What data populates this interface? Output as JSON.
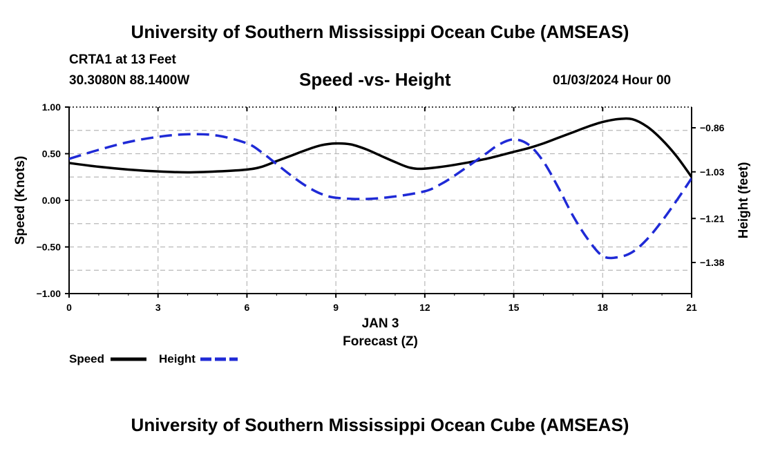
{
  "page": {
    "top_title": "University of Southern Mississippi Ocean Cube (AMSEAS)",
    "bottom_title": "University of Southern Mississippi Ocean Cube (AMSEAS)",
    "station": "CRTA1 at 13 Feet",
    "location": "30.3080N  88.1400W",
    "datetime": "01/03/2024 Hour 00"
  },
  "chart_data": {
    "type": "line",
    "title": "Speed -vs- Height",
    "xlabel_date": "JAN 3",
    "xlabel": "Forecast (Z)",
    "ylabel": "Speed (Knots)",
    "y2label": "Height (feet)",
    "xlim": [
      0,
      21
    ],
    "ylim": [
      -1.0,
      1.0
    ],
    "y2lim": [
      -1.5,
      -0.78
    ],
    "xticks": [
      0,
      3,
      6,
      9,
      12,
      15,
      18,
      21
    ],
    "xtick_labels": [
      "0",
      "3",
      "6",
      "9",
      "12",
      "15",
      "18",
      "21"
    ],
    "yticks": [
      1.0,
      0.5,
      0.0,
      -0.5,
      -1.0
    ],
    "ytick_labels": [
      "1.00",
      "0.50",
      "0.00",
      "−0.50",
      "−1.00"
    ],
    "y2ticks": [
      -0.86,
      -1.03,
      -1.21,
      -1.38
    ],
    "y2tick_labels": [
      "−0.86",
      "−1.03",
      "−1.21",
      "−1.38"
    ],
    "grid": true,
    "series": [
      {
        "name": "Speed",
        "axis": "left",
        "color": "#000000",
        "dash": "solid",
        "x": [
          0,
          1,
          2,
          3,
          4,
          5,
          6,
          6.5,
          7,
          7.5,
          8,
          8.5,
          9,
          9.5,
          10,
          10.5,
          11,
          11.5,
          12,
          13,
          14,
          15,
          15.5,
          16,
          16.5,
          17,
          17.5,
          18,
          18.5,
          19,
          19.5,
          20,
          20.5,
          21
        ],
        "values": [
          0.4,
          0.36,
          0.33,
          0.31,
          0.3,
          0.31,
          0.33,
          0.36,
          0.42,
          0.48,
          0.54,
          0.59,
          0.61,
          0.6,
          0.55,
          0.48,
          0.41,
          0.35,
          0.34,
          0.38,
          0.44,
          0.52,
          0.56,
          0.61,
          0.67,
          0.73,
          0.79,
          0.84,
          0.87,
          0.87,
          0.79,
          0.65,
          0.47,
          0.25
        ]
      },
      {
        "name": "Height",
        "axis": "right",
        "color": "#1f2ad6",
        "dash": "dashed",
        "x": [
          0,
          1,
          2,
          3,
          4,
          5,
          6,
          6.5,
          7,
          7.5,
          8,
          8.5,
          9,
          10,
          11,
          12,
          12.5,
          13,
          14,
          14.5,
          15,
          15.5,
          16,
          16.5,
          17,
          17.5,
          18,
          18.5,
          19,
          19.5,
          20,
          20.5,
          21
        ],
        "values": [
          -0.98,
          -0.945,
          -0.915,
          -0.895,
          -0.885,
          -0.89,
          -0.92,
          -0.955,
          -1.0,
          -1.045,
          -1.085,
          -1.115,
          -1.13,
          -1.135,
          -1.125,
          -1.105,
          -1.08,
          -1.045,
          -0.965,
          -0.925,
          -0.905,
          -0.925,
          -0.99,
          -1.09,
          -1.2,
          -1.29,
          -1.355,
          -1.36,
          -1.34,
          -1.29,
          -1.22,
          -1.14,
          -1.055
        ]
      }
    ],
    "legend": [
      {
        "label": "Speed",
        "color": "#000000",
        "dash": "solid"
      },
      {
        "label": "Height",
        "color": "#1f2ad6",
        "dash": "dashed"
      }
    ]
  }
}
